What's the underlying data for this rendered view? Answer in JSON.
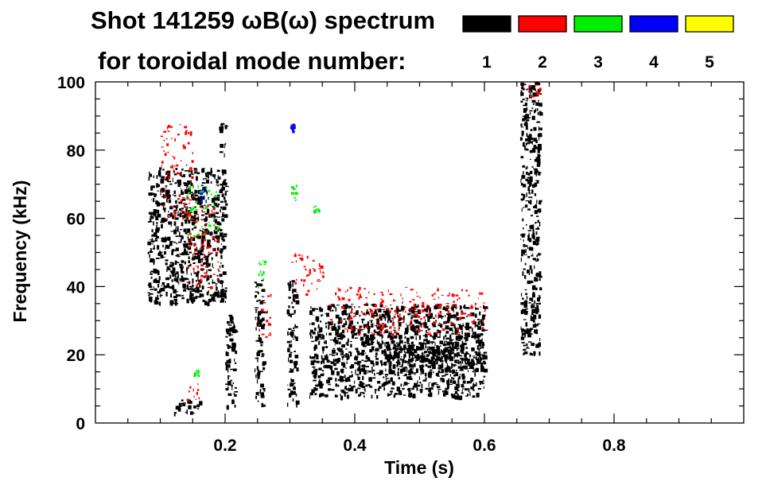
{
  "chart_data": {
    "type": "heatmap",
    "title": "Shot 141259 ωB(ω) spectrum",
    "subtitle": "for toroidal mode number:",
    "xlabel": "Time (s)",
    "ylabel": "Frequency (kHz)",
    "xlim": [
      0.0,
      1.0
    ],
    "ylim": [
      0,
      100
    ],
    "xticks": [
      {
        "value": 0.2,
        "label": "0.2"
      },
      {
        "value": 0.4,
        "label": "0.4"
      },
      {
        "value": 0.6,
        "label": "0.6"
      },
      {
        "value": 0.8,
        "label": "0.8"
      }
    ],
    "yticks": [
      {
        "value": 0,
        "label": "0"
      },
      {
        "value": 20,
        "label": "20"
      },
      {
        "value": 40,
        "label": "40"
      },
      {
        "value": 60,
        "label": "60"
      },
      {
        "value": 80,
        "label": "80"
      },
      {
        "value": 100,
        "label": "100"
      }
    ],
    "legend": [
      {
        "mode": "1",
        "color": "#000000"
      },
      {
        "mode": "2",
        "color": "#ff0000"
      },
      {
        "mode": "3",
        "color": "#00ee00"
      },
      {
        "mode": "4",
        "color": "#0000ff"
      },
      {
        "mode": "5",
        "color": "#ffff00"
      }
    ],
    "legend_placement": "top-right",
    "regions": [
      {
        "mode": "1",
        "t": [
          0.08,
          0.2
        ],
        "f": [
          35,
          75
        ]
      },
      {
        "mode": "1",
        "t": [
          0.12,
          0.16
        ],
        "f": [
          3,
          7
        ]
      },
      {
        "mode": "1",
        "t": [
          0.19,
          0.2
        ],
        "f": [
          78,
          88
        ]
      },
      {
        "mode": "1",
        "t": [
          0.2,
          0.215
        ],
        "f": [
          5,
          32
        ]
      },
      {
        "mode": "1",
        "t": [
          0.245,
          0.26
        ],
        "f": [
          5,
          42
        ]
      },
      {
        "mode": "1",
        "t": [
          0.295,
          0.31
        ],
        "f": [
          5,
          42
        ]
      },
      {
        "mode": "1",
        "t": [
          0.33,
          0.6
        ],
        "f": [
          8,
          35
        ]
      },
      {
        "mode": "1",
        "t": [
          0.44,
          0.6
        ],
        "f": [
          15,
          24
        ]
      },
      {
        "mode": "1",
        "t": [
          0.655,
          0.685
        ],
        "f": [
          20,
          100
        ]
      },
      {
        "mode": "2",
        "t": [
          0.1,
          0.15
        ],
        "f": [
          60,
          88
        ]
      },
      {
        "mode": "2",
        "t": [
          0.14,
          0.19
        ],
        "f": [
          40,
          65
        ]
      },
      {
        "mode": "2",
        "t": [
          0.14,
          0.16
        ],
        "f": [
          6,
          12
        ]
      },
      {
        "mode": "2",
        "t": [
          0.25,
          0.27
        ],
        "f": [
          25,
          38
        ]
      },
      {
        "mode": "2",
        "t": [
          0.3,
          0.35
        ],
        "f": [
          38,
          50
        ]
      },
      {
        "mode": "2",
        "t": [
          0.36,
          0.6
        ],
        "f": [
          26,
          40
        ]
      },
      {
        "mode": "2",
        "t": [
          0.665,
          0.685
        ],
        "f": [
          95,
          100
        ]
      },
      {
        "mode": "3",
        "t": [
          0.14,
          0.19
        ],
        "f": [
          55,
          70
        ]
      },
      {
        "mode": "3",
        "t": [
          0.25,
          0.26
        ],
        "f": [
          40,
          48
        ]
      },
      {
        "mode": "3",
        "t": [
          0.3,
          0.31
        ],
        "f": [
          65,
          70
        ]
      },
      {
        "mode": "3",
        "t": [
          0.335,
          0.345
        ],
        "f": [
          62,
          64
        ]
      },
      {
        "mode": "3",
        "t": [
          0.15,
          0.16
        ],
        "f": [
          14,
          16
        ]
      },
      {
        "mode": "4",
        "t": [
          0.16,
          0.17
        ],
        "f": [
          65,
          70
        ]
      },
      {
        "mode": "4",
        "t": [
          0.3,
          0.305
        ],
        "f": [
          85,
          88
        ]
      }
    ]
  }
}
